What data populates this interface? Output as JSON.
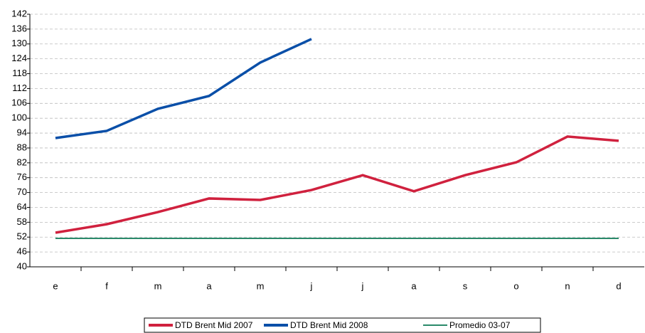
{
  "chart_data": {
    "type": "line",
    "categories": [
      "e",
      "f",
      "m",
      "a",
      "m",
      "j",
      "j",
      "a",
      "s",
      "o",
      "n",
      "d"
    ],
    "series": [
      {
        "name": "DTD Brent Mid 2007",
        "color": "#d0213e",
        "values": [
          53.8,
          57.2,
          62.1,
          67.6,
          67,
          71,
          77,
          70.5,
          77,
          82.2,
          92.6,
          90.9
        ]
      },
      {
        "name": "DTD Brent Mid 2008",
        "color": "#0a4fa8",
        "values": [
          92,
          94.9,
          103.8,
          109,
          122.5,
          132,
          null,
          null,
          null,
          null,
          null,
          null
        ]
      },
      {
        "name": "Promedio 03-07",
        "color": "#2a8a6a",
        "values": [
          51.5,
          51.5,
          51.5,
          51.5,
          51.5,
          51.5,
          51.5,
          51.5,
          51.5,
          51.5,
          51.5,
          51.5
        ]
      }
    ],
    "ylim": [
      40,
      142
    ],
    "yticks": [
      40,
      46,
      52,
      58,
      64,
      70,
      76,
      82,
      88,
      94,
      100,
      106,
      112,
      118,
      124,
      130,
      136,
      142
    ],
    "grid": true,
    "legend": "bottom"
  }
}
